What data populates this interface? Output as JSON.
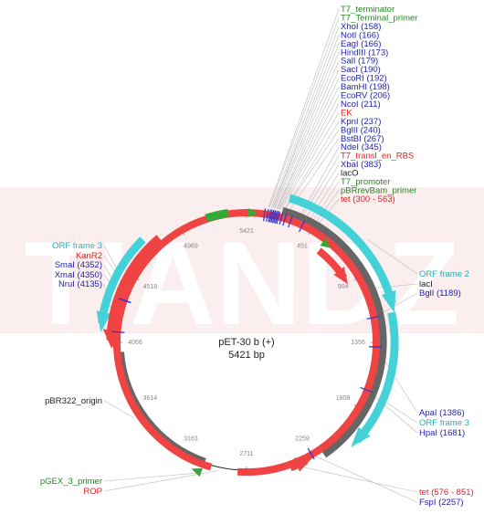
{
  "plasmid": {
    "name": "pET-30 b (+)",
    "length_label": "5421 bp",
    "length": 5421
  },
  "watermark": "TIANDZ",
  "colors": {
    "backbone": "#222222",
    "orf": "#44d2d8",
    "gene": "#f04444",
    "grey_feature": "#666666",
    "green_feature": "#33aa33",
    "label_green": "#228822",
    "label_blue": "#2222aa",
    "label_red": "#dd2222",
    "label_dark": "#222222",
    "label_teal": "#20b2b2",
    "leader": "#bbbbbb",
    "cut": "#3333cc"
  },
  "ticks": [
    {
      "pos": 0,
      "label": "5421"
    },
    {
      "pos": 451,
      "label": "451"
    },
    {
      "pos": 904,
      "label": "904"
    },
    {
      "pos": 1356,
      "label": "1356"
    },
    {
      "pos": 1808,
      "label": "1808"
    },
    {
      "pos": 2259,
      "label": "2259"
    },
    {
      "pos": 2711,
      "label": "2711"
    },
    {
      "pos": 3163,
      "label": "3163"
    },
    {
      "pos": 3614,
      "label": "3614"
    },
    {
      "pos": 4066,
      "label": "4066"
    },
    {
      "pos": 4518,
      "label": "4518"
    },
    {
      "pos": 4969,
      "label": "4969"
    }
  ],
  "features": [
    {
      "name": "grey-lacI-block",
      "start": 230,
      "end": 2190,
      "track": 8,
      "width": 11,
      "color": "grey_feature",
      "dir": 0
    },
    {
      "name": "grey-origin-block",
      "start": 3000,
      "end": 4000,
      "track": 0,
      "width": 11,
      "color": "grey_feature",
      "dir": 0
    },
    {
      "name": "cyan-orf2",
      "start": 250,
      "end": 1130,
      "track": 25,
      "width": 9,
      "color": "orf",
      "dir": 1
    },
    {
      "name": "cyan-orf3-right",
      "start": 1180,
      "end": 1980,
      "track": 22,
      "width": 9,
      "color": "orf",
      "dir": 1
    },
    {
      "name": "cyan-orf3-left",
      "start": 4740,
      "end": 4180,
      "track": 20,
      "width": 9,
      "color": "orf",
      "dir": -1
    },
    {
      "name": "red-kanr2",
      "start": 4820,
      "end": 4080,
      "track": 8,
      "width": 11,
      "color": "gene",
      "dir": -1
    },
    {
      "name": "red-tet-right",
      "start": 576,
      "end": 851,
      "track": -12,
      "width": 8,
      "color": "gene",
      "dir": 1
    },
    {
      "name": "red-tet-bottom",
      "start": 2420,
      "end": 2310,
      "track": 5,
      "width": 9,
      "color": "gene",
      "dir": -1
    },
    {
      "name": "red-rop",
      "start": 2950,
      "end": 2770,
      "track": 2,
      "width": 8,
      "color": "gene",
      "dir": 0
    },
    {
      "name": "green-top",
      "start": 5150,
      "end": 5300,
      "track": 3,
      "width": 9,
      "color": "green_feature",
      "dir": 0
    }
  ],
  "arrowheads": [
    {
      "name": "green-arrow-top",
      "pos": 10,
      "r": 142,
      "color": "green_feature"
    },
    {
      "name": "green-arrow-right",
      "pos": 560,
      "r": 138,
      "color": "green_feature"
    },
    {
      "name": "green-arrow-bottom",
      "pos": 3000,
      "r": 151,
      "color": "green_feature"
    }
  ],
  "cuts": [
    120,
    140,
    155,
    165,
    175,
    185,
    195,
    205,
    215,
    235,
    260,
    300,
    383,
    1189,
    1386,
    1681,
    2257,
    4135,
    4350,
    4352
  ],
  "labels_top": [
    {
      "text": "T7_terminator",
      "color": "label_green",
      "anchor": 140
    },
    {
      "text": "T7_Terminal_primer",
      "color": "label_green",
      "anchor": 145
    },
    {
      "text": "XhoI (158)",
      "color": "label_blue",
      "anchor": 158
    },
    {
      "text": "NotI (166)",
      "color": "label_blue",
      "anchor": 166
    },
    {
      "text": "EagI (166)",
      "color": "label_blue",
      "anchor": 166
    },
    {
      "text": "HindIII (173)",
      "color": "label_blue",
      "anchor": 173
    },
    {
      "text": "SalI (179)",
      "color": "label_blue",
      "anchor": 179
    },
    {
      "text": "SacI (190)",
      "color": "label_blue",
      "anchor": 190
    },
    {
      "text": "EcoRI (192)",
      "color": "label_blue",
      "anchor": 192
    },
    {
      "text": "BamHI (198)",
      "color": "label_blue",
      "anchor": 198
    },
    {
      "text": "EcoRV (206)",
      "color": "label_blue",
      "anchor": 206
    },
    {
      "text": "NcoI (211)",
      "color": "label_blue",
      "anchor": 211
    },
    {
      "text": "EK",
      "color": "label_red",
      "anchor": 220
    },
    {
      "text": "KpnI (237)",
      "color": "label_blue",
      "anchor": 237
    },
    {
      "text": "BglII (240)",
      "color": "label_blue",
      "anchor": 240
    },
    {
      "text": "BstBI (267)",
      "color": "label_blue",
      "anchor": 267
    },
    {
      "text": "NdeI (345)",
      "color": "label_blue",
      "anchor": 345
    },
    {
      "text": "T7_transl_en_RBS",
      "color": "label_red",
      "anchor": 360
    },
    {
      "text": "XbaI (383)",
      "color": "label_blue",
      "anchor": 383
    },
    {
      "text": "lacO",
      "color": "label_dark",
      "anchor": 410
    },
    {
      "text": "T7_promoter",
      "color": "label_green",
      "anchor": 430
    },
    {
      "text": "pBRrevBam_primer",
      "color": "label_green",
      "anchor": 450
    },
    {
      "text": "tet (300 - 563)",
      "color": "label_red",
      "anchor": 470
    }
  ],
  "labels_right": [
    {
      "text": "ORF frame 2",
      "color": "label_teal",
      "anchor": 750,
      "r": 174
    },
    {
      "text": "lacI",
      "color": "label_dark",
      "anchor": 1000,
      "r": 148
    },
    {
      "text": "BglI (1189)",
      "color": "label_blue",
      "anchor": 1189,
      "r": 142
    },
    {
      "text": "ApaI (1386)",
      "color": "label_blue",
      "anchor": 1386,
      "r": 142
    },
    {
      "text": "ORF frame 3",
      "color": "label_teal",
      "anchor": 1700,
      "r": 160
    },
    {
      "text": "HpaI (1681)",
      "color": "label_blue",
      "anchor": 1681,
      "r": 142
    },
    {
      "text": "tet (576 - 851)",
      "color": "label_red",
      "anchor": 2360,
      "r": 148
    },
    {
      "text": "FspI (2257)",
      "color": "label_blue",
      "anchor": 2257,
      "r": 142
    }
  ],
  "labels_left": [
    {
      "text": "ORF frame 3",
      "color": "label_teal",
      "anchor": 4500,
      "r": 160
    },
    {
      "text": "KanR2",
      "color": "label_red",
      "anchor": 4450,
      "r": 150
    },
    {
      "text": "SmaI (4352)",
      "color": "label_blue",
      "anchor": 4352,
      "r": 142
    },
    {
      "text": "XmaI (4350)",
      "color": "label_blue",
      "anchor": 4350,
      "r": 142
    },
    {
      "text": "NruI (4135)",
      "color": "label_blue",
      "anchor": 4135,
      "r": 142
    },
    {
      "text": "pBR322_origin",
      "color": "label_dark",
      "anchor": 3550,
      "r": 148
    },
    {
      "text": "pGEX_3_primer",
      "color": "label_green",
      "anchor": 3010,
      "r": 152
    },
    {
      "text": "ROP",
      "color": "label_red",
      "anchor": 2900,
      "r": 144
    }
  ]
}
